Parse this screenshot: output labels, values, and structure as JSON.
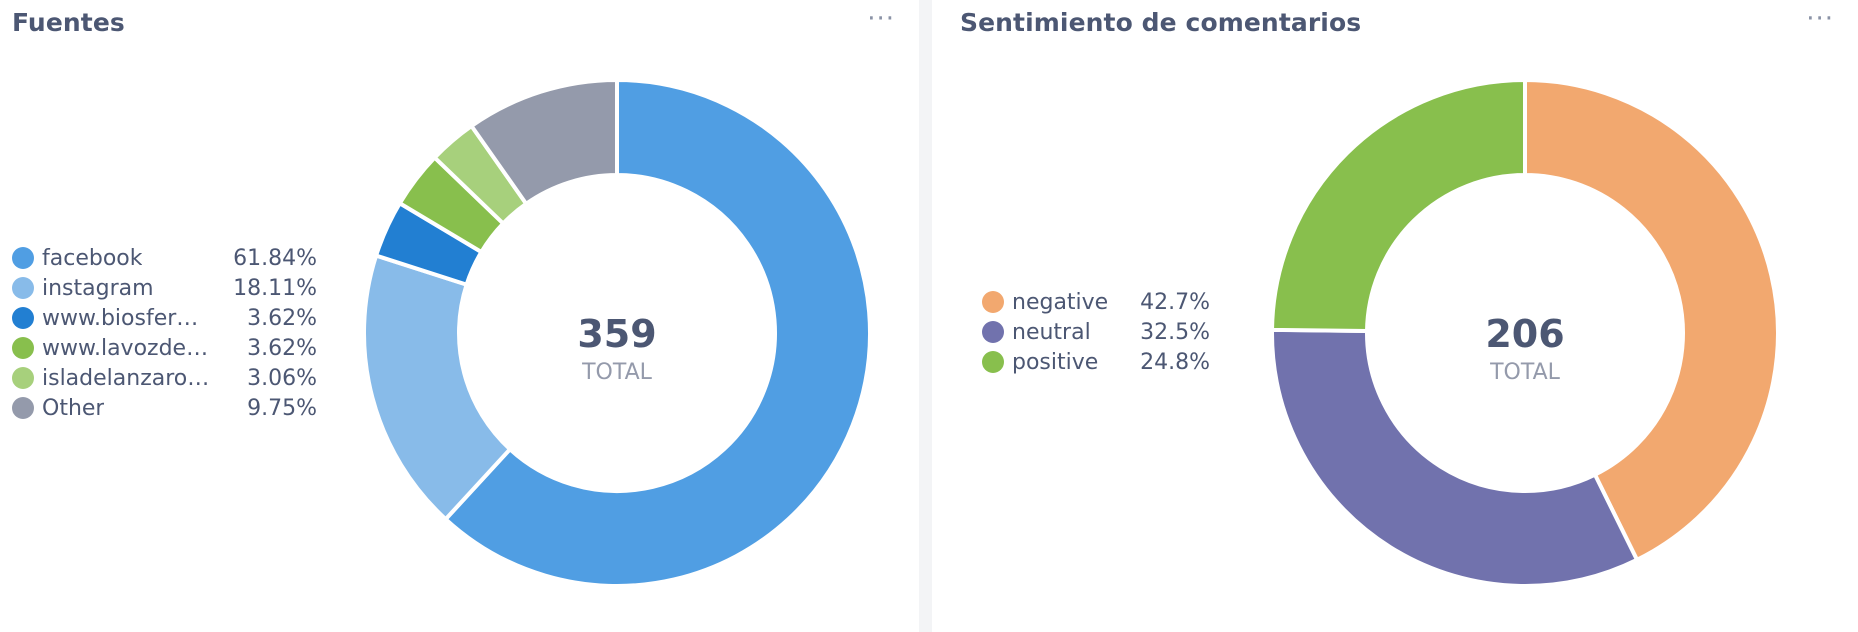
{
  "cards": [
    {
      "title": "Fuentes",
      "more": "···",
      "total_value": "359",
      "total_label": "TOTAL"
    },
    {
      "title": "Sentimiento de comentarios",
      "more": "···",
      "total_value": "206",
      "total_label": "TOTAL"
    }
  ],
  "chart_data": [
    {
      "type": "pie",
      "title": "Fuentes",
      "total": 359,
      "categories": [
        "facebook",
        "instagram",
        "www.biosfer…",
        "www.lavozde…",
        "isladelanzaro…",
        "Other"
      ],
      "values": [
        61.84,
        18.11,
        3.62,
        3.62,
        3.06,
        9.75
      ],
      "value_labels": [
        "61.84%",
        "18.11%",
        "3.62%",
        "3.62%",
        "3.06%",
        "9.75%"
      ],
      "colors": [
        "#509ee3",
        "#88bbe9",
        "#227fd2",
        "#88bf4d",
        "#a7d07c",
        "#949aab"
      ],
      "legend_placement": "left"
    },
    {
      "type": "pie",
      "title": "Sentimiento de comentarios",
      "total": 206,
      "categories": [
        "negative",
        "neutral",
        "positive"
      ],
      "values": [
        42.7,
        32.5,
        24.8
      ],
      "value_labels": [
        "42.7%",
        "32.5%",
        "24.8%"
      ],
      "colors": [
        "#f2a86f",
        "#7172ad",
        "#88bf4d"
      ],
      "legend_placement": "left"
    }
  ]
}
